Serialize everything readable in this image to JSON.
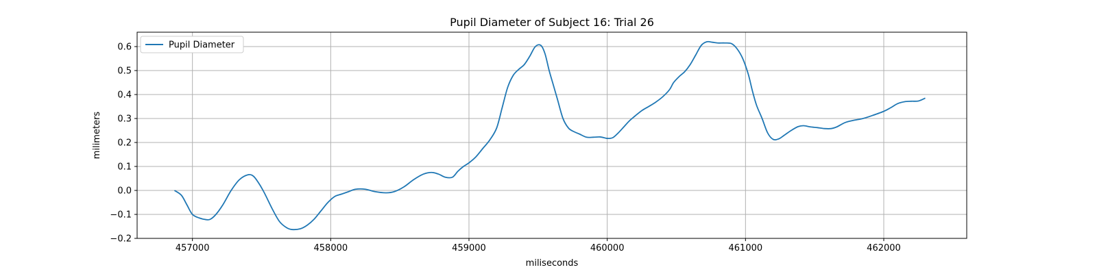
{
  "chart_data": {
    "type": "line",
    "title": "Pupil Diameter of Subject 16: Trial 26",
    "xlabel": "miliseconds",
    "ylabel": "milimeters",
    "xlim": [
      456600,
      462600
    ],
    "ylim": [
      -0.2,
      0.66
    ],
    "xticks": [
      457000,
      458000,
      459000,
      460000,
      461000,
      462000
    ],
    "yticks": [
      -0.2,
      -0.1,
      0.0,
      0.1,
      0.2,
      0.3,
      0.4,
      0.5,
      0.6
    ],
    "xtick_labels": [
      "457000",
      "458000",
      "459000",
      "460000",
      "461000",
      "462000"
    ],
    "ytick_labels": [
      "−0.2",
      "−0.1",
      "0.0",
      "0.1",
      "0.2",
      "0.3",
      "0.4",
      "0.5",
      "0.6"
    ],
    "grid": true,
    "legend_position": "top-left",
    "series": [
      {
        "name": "Pupil Diameter",
        "color": "#1f77b4",
        "x": [
          456870,
          456920,
          456960,
          457000,
          457050,
          457100,
          457130,
          457170,
          457220,
          457280,
          457340,
          457400,
          457440,
          457480,
          457520,
          457580,
          457630,
          457680,
          457720,
          457780,
          457830,
          457880,
          457930,
          457980,
          458030,
          458080,
          458130,
          458180,
          458250,
          458320,
          458400,
          458460,
          458530,
          458600,
          458670,
          458730,
          458780,
          458830,
          458880,
          458920,
          458960,
          459000,
          459050,
          459100,
          459150,
          459200,
          459240,
          459280,
          459320,
          459360,
          459400,
          459440,
          459480,
          459520,
          459550,
          459580,
          459610,
          459640,
          459680,
          459720,
          459760,
          459800,
          459850,
          459900,
          459950,
          460000,
          460040,
          460080,
          460120,
          460160,
          460200,
          460250,
          460300,
          460350,
          460400,
          460450,
          460480,
          460520,
          460560,
          460600,
          460640,
          460680,
          460720,
          460760,
          460800,
          460850,
          460900,
          460940,
          460980,
          461020,
          461050,
          461080,
          461120,
          461160,
          461200,
          461240,
          461280,
          461330,
          461380,
          461420,
          461470,
          461520,
          461570,
          461620,
          461660,
          461720,
          461780,
          461850,
          461920,
          462000,
          462050,
          462100,
          462150,
          462200,
          462250,
          462300
        ],
        "y": [
          0.0,
          -0.02,
          -0.06,
          -0.1,
          -0.115,
          -0.122,
          -0.12,
          -0.1,
          -0.06,
          0.0,
          0.045,
          0.065,
          0.06,
          0.03,
          -0.01,
          -0.08,
          -0.13,
          -0.155,
          -0.163,
          -0.16,
          -0.145,
          -0.12,
          -0.085,
          -0.05,
          -0.025,
          -0.015,
          -0.005,
          0.005,
          0.005,
          -0.005,
          -0.01,
          -0.005,
          0.015,
          0.045,
          0.068,
          0.075,
          0.068,
          0.055,
          0.055,
          0.08,
          0.1,
          0.115,
          0.14,
          0.175,
          0.21,
          0.26,
          0.345,
          0.43,
          0.48,
          0.505,
          0.525,
          0.56,
          0.6,
          0.605,
          0.57,
          0.5,
          0.44,
          0.38,
          0.3,
          0.26,
          0.245,
          0.235,
          0.222,
          0.222,
          0.223,
          0.217,
          0.22,
          0.24,
          0.265,
          0.29,
          0.31,
          0.333,
          0.35,
          0.368,
          0.39,
          0.42,
          0.45,
          0.475,
          0.495,
          0.525,
          0.565,
          0.605,
          0.62,
          0.618,
          0.615,
          0.615,
          0.612,
          0.59,
          0.55,
          0.485,
          0.415,
          0.355,
          0.3,
          0.24,
          0.213,
          0.215,
          0.23,
          0.25,
          0.266,
          0.27,
          0.265,
          0.262,
          0.258,
          0.258,
          0.265,
          0.283,
          0.292,
          0.3,
          0.313,
          0.33,
          0.345,
          0.362,
          0.37,
          0.372,
          0.373,
          0.385
        ]
      }
    ]
  }
}
